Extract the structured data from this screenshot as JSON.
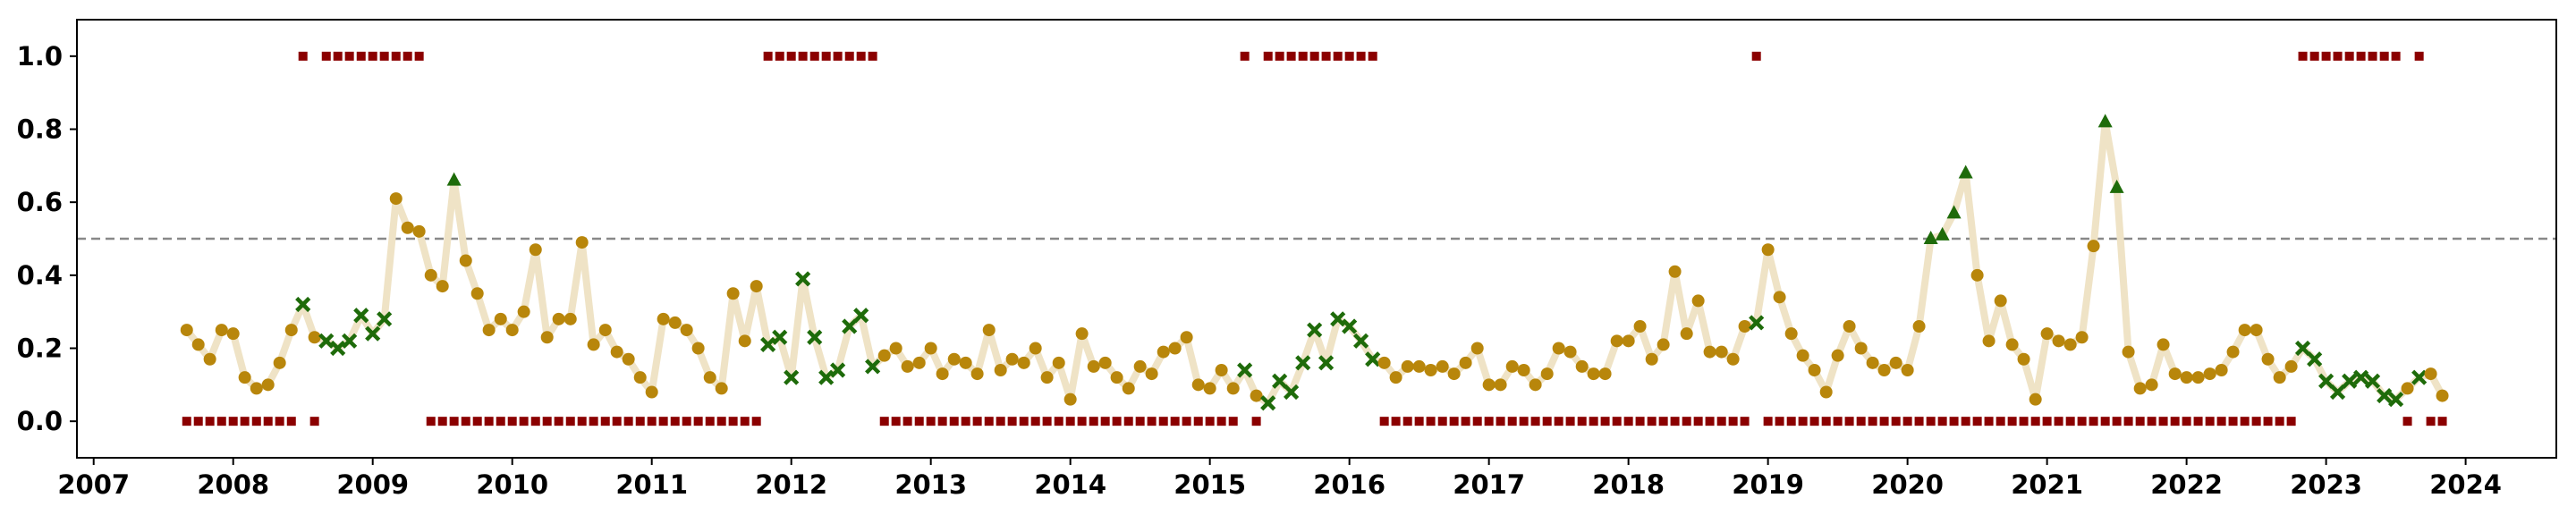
{
  "chart_data": {
    "type": "line",
    "x": [
      2007.667,
      2007.75,
      2007.833,
      2007.917,
      2008,
      2008.083,
      2008.167,
      2008.25,
      2008.333,
      2008.417,
      2008.5,
      2008.583,
      2008.667,
      2008.75,
      2008.833,
      2008.917,
      2009,
      2009.083,
      2009.167,
      2009.25,
      2009.333,
      2009.417,
      2009.5,
      2009.583,
      2009.667,
      2009.75,
      2009.833,
      2009.917,
      2010,
      2010.083,
      2010.167,
      2010.25,
      2010.333,
      2010.417,
      2010.5,
      2010.583,
      2010.667,
      2010.75,
      2010.833,
      2010.917,
      2011,
      2011.083,
      2011.167,
      2011.25,
      2011.333,
      2011.417,
      2011.5,
      2011.583,
      2011.667,
      2011.75,
      2011.833,
      2011.917,
      2012,
      2012.083,
      2012.167,
      2012.25,
      2012.333,
      2012.417,
      2012.5,
      2012.583,
      2012.667,
      2012.75,
      2012.833,
      2012.917,
      2013,
      2013.083,
      2013.167,
      2013.25,
      2013.333,
      2013.417,
      2013.5,
      2013.583,
      2013.667,
      2013.75,
      2013.833,
      2013.917,
      2014,
      2014.083,
      2014.167,
      2014.25,
      2014.333,
      2014.417,
      2014.5,
      2014.583,
      2014.667,
      2014.75,
      2014.833,
      2014.917,
      2015,
      2015.083,
      2015.167,
      2015.25,
      2015.333,
      2015.417,
      2015.5,
      2015.583,
      2015.667,
      2015.75,
      2015.833,
      2015.917,
      2016,
      2016.083,
      2016.167,
      2016.25,
      2016.333,
      2016.417,
      2016.5,
      2016.583,
      2016.667,
      2016.75,
      2016.833,
      2016.917,
      2017,
      2017.083,
      2017.167,
      2017.25,
      2017.333,
      2017.417,
      2017.5,
      2017.583,
      2017.667,
      2017.75,
      2017.833,
      2017.917,
      2018,
      2018.083,
      2018.167,
      2018.25,
      2018.333,
      2018.417,
      2018.5,
      2018.583,
      2018.667,
      2018.75,
      2018.833,
      2018.917,
      2019,
      2019.083,
      2019.167,
      2019.25,
      2019.333,
      2019.417,
      2019.5,
      2019.583,
      2019.667,
      2019.75,
      2019.833,
      2019.917,
      2020,
      2020.083,
      2020.167,
      2020.25,
      2020.333,
      2020.417,
      2020.5,
      2020.583,
      2020.667,
      2020.75,
      2020.833,
      2020.917,
      2021,
      2021.083,
      2021.167,
      2021.25,
      2021.333,
      2021.417,
      2021.5,
      2021.583,
      2021.667,
      2021.75,
      2021.833,
      2021.917,
      2022,
      2022.083,
      2022.167,
      2022.25,
      2022.333,
      2022.417,
      2022.5,
      2022.583,
      2022.667,
      2022.75,
      2022.833,
      2022.917,
      2023,
      2023.083,
      2023.167,
      2023.25,
      2023.333,
      2023.417,
      2023.5,
      2023.583,
      2023.667,
      2023.75,
      2023.833
    ],
    "values": [
      0.25,
      0.21,
      0.17,
      0.25,
      0.24,
      0.12,
      0.09,
      0.1,
      0.16,
      0.25,
      0.32,
      0.23,
      0.22,
      0.2,
      0.22,
      0.29,
      0.24,
      0.28,
      0.61,
      0.53,
      0.52,
      0.4,
      0.37,
      0.66,
      0.44,
      0.35,
      0.25,
      0.28,
      0.25,
      0.3,
      0.47,
      0.23,
      0.28,
      0.28,
      0.49,
      0.21,
      0.25,
      0.19,
      0.17,
      0.12,
      0.08,
      0.28,
      0.27,
      0.25,
      0.2,
      0.12,
      0.09,
      0.35,
      0.22,
      0.37,
      0.21,
      0.23,
      0.12,
      0.39,
      0.23,
      0.12,
      0.14,
      0.26,
      0.29,
      0.15,
      0.18,
      0.2,
      0.15,
      0.16,
      0.2,
      0.13,
      0.17,
      0.16,
      0.13,
      0.25,
      0.14,
      0.17,
      0.16,
      0.2,
      0.12,
      0.16,
      0.06,
      0.24,
      0.15,
      0.16,
      0.12,
      0.09,
      0.15,
      0.13,
      0.19,
      0.2,
      0.23,
      0.1,
      0.09,
      0.14,
      0.09,
      0.14,
      0.07,
      0.05,
      0.11,
      0.08,
      0.16,
      0.25,
      0.16,
      0.28,
      0.26,
      0.22,
      0.17,
      0.16,
      0.12,
      0.15,
      0.15,
      0.14,
      0.15,
      0.13,
      0.16,
      0.2,
      0.1,
      0.1,
      0.15,
      0.14,
      0.1,
      0.13,
      0.2,
      0.19,
      0.15,
      0.13,
      0.13,
      0.22,
      0.22,
      0.26,
      0.17,
      0.21,
      0.41,
      0.24,
      0.33,
      0.19,
      0.19,
      0.17,
      0.26,
      0.27,
      0.47,
      0.34,
      0.24,
      0.18,
      0.14,
      0.08,
      0.18,
      0.26,
      0.2,
      0.16,
      0.14,
      0.16,
      0.14,
      0.26,
      0.5,
      0.51,
      0.57,
      0.68,
      0.4,
      0.22,
      0.33,
      0.21,
      0.17,
      0.06,
      0.24,
      0.22,
      0.21,
      0.23,
      0.48,
      0.82,
      0.64,
      0.19,
      0.09,
      0.1,
      0.21,
      0.13,
      0.12,
      0.12,
      0.13,
      0.14,
      0.19,
      0.25,
      0.25,
      0.17,
      0.12,
      0.15,
      0.2,
      0.17,
      0.11,
      0.08,
      0.11,
      0.12,
      0.11,
      0.07,
      0.06,
      0.09,
      0.12,
      0.13,
      0.07
    ],
    "markers": [
      "o",
      "o",
      "o",
      "o",
      "o",
      "o",
      "o",
      "o",
      "o",
      "o",
      "x",
      "o",
      "x",
      "x",
      "x",
      "x",
      "x",
      "x",
      "o",
      "o",
      "o",
      "o",
      "o",
      "^",
      "o",
      "o",
      "o",
      "o",
      "o",
      "o",
      "o",
      "o",
      "o",
      "o",
      "o",
      "o",
      "o",
      "o",
      "o",
      "o",
      "o",
      "o",
      "o",
      "o",
      "o",
      "o",
      "o",
      "o",
      "o",
      "o",
      "x",
      "x",
      "x",
      "x",
      "x",
      "x",
      "x",
      "x",
      "x",
      "x",
      "o",
      "o",
      "o",
      "o",
      "o",
      "o",
      "o",
      "o",
      "o",
      "o",
      "o",
      "o",
      "o",
      "o",
      "o",
      "o",
      "o",
      "o",
      "o",
      "o",
      "o",
      "o",
      "o",
      "o",
      "o",
      "o",
      "o",
      "o",
      "o",
      "o",
      "o",
      "x",
      "o",
      "x",
      "x",
      "x",
      "x",
      "x",
      "x",
      "x",
      "x",
      "x",
      "x",
      "o",
      "o",
      "o",
      "o",
      "o",
      "o",
      "o",
      "o",
      "o",
      "o",
      "o",
      "o",
      "o",
      "o",
      "o",
      "o",
      "o",
      "o",
      "o",
      "o",
      "o",
      "o",
      "o",
      "o",
      "o",
      "o",
      "o",
      "o",
      "o",
      "o",
      "o",
      "o",
      "x",
      "o",
      "o",
      "o",
      "o",
      "o",
      "o",
      "o",
      "o",
      "o",
      "o",
      "o",
      "o",
      "o",
      "o",
      "^",
      "^",
      "^",
      "^",
      "o",
      "o",
      "o",
      "o",
      "o",
      "o",
      "o",
      "o",
      "o",
      "o",
      "o",
      "^",
      "^",
      "o",
      "o",
      "o",
      "o",
      "o",
      "o",
      "o",
      "o",
      "o",
      "o",
      "o",
      "o",
      "o",
      "o",
      "o",
      "x",
      "x",
      "x",
      "x",
      "x",
      "x",
      "x",
      "x",
      "x",
      "o",
      "x",
      "o",
      "o"
    ],
    "marker_colors": {
      "o": "#b8860b",
      "x": "#1e6b0a",
      "^": "#1e6b0a"
    },
    "line_color": "#efe3c6",
    "regime": {
      "color": "#8b0000",
      "values": [
        0,
        0,
        0,
        0,
        0,
        0,
        0,
        0,
        0,
        0,
        1,
        0,
        1,
        1,
        1,
        1,
        1,
        1,
        1,
        1,
        1,
        0,
        0,
        0,
        0,
        0,
        0,
        0,
        0,
        0,
        0,
        0,
        0,
        0,
        0,
        0,
        0,
        0,
        0,
        0,
        0,
        0,
        0,
        0,
        0,
        0,
        0,
        0,
        0,
        0,
        1,
        1,
        1,
        1,
        1,
        1,
        1,
        1,
        1,
        1,
        0,
        0,
        0,
        0,
        0,
        0,
        0,
        0,
        0,
        0,
        0,
        0,
        0,
        0,
        0,
        0,
        0,
        0,
        0,
        0,
        0,
        0,
        0,
        0,
        0,
        0,
        0,
        0,
        0,
        0,
        0,
        1,
        0,
        1,
        1,
        1,
        1,
        1,
        1,
        1,
        1,
        1,
        1,
        0,
        0,
        0,
        0,
        0,
        0,
        0,
        0,
        0,
        0,
        0,
        0,
        0,
        0,
        0,
        0,
        0,
        0,
        0,
        0,
        0,
        0,
        0,
        0,
        0,
        0,
        0,
        0,
        0,
        0,
        0,
        0,
        1,
        0,
        0,
        0,
        0,
        0,
        0,
        0,
        0,
        0,
        0,
        0,
        0,
        0,
        0,
        0,
        0,
        0,
        0,
        0,
        0,
        0,
        0,
        0,
        0,
        0,
        0,
        0,
        0,
        0,
        0,
        0,
        0,
        0,
        0,
        0,
        0,
        0,
        0,
        0,
        0,
        0,
        0,
        0,
        0,
        0,
        0,
        1,
        1,
        1,
        1,
        1,
        1,
        1,
        1,
        1,
        0,
        1,
        0,
        0
      ]
    },
    "hline": {
      "value": 0.5,
      "color": "#888888"
    },
    "xlim": [
      2006.88,
      2024.65
    ],
    "ylim": [
      -0.1,
      1.1
    ],
    "xticks": [
      2007,
      2008,
      2009,
      2010,
      2011,
      2012,
      2013,
      2014,
      2015,
      2016,
      2017,
      2018,
      2019,
      2020,
      2021,
      2022,
      2023,
      2024
    ],
    "yticks": [
      {
        "value": 0,
        "label": "0.0"
      },
      {
        "value": 0.2,
        "label": "0.2"
      },
      {
        "value": 0.4,
        "label": "0.4"
      },
      {
        "value": 0.6,
        "label": "0.6"
      },
      {
        "value": 0.8,
        "label": "0.8"
      },
      {
        "value": 1,
        "label": "1.0"
      }
    ]
  }
}
